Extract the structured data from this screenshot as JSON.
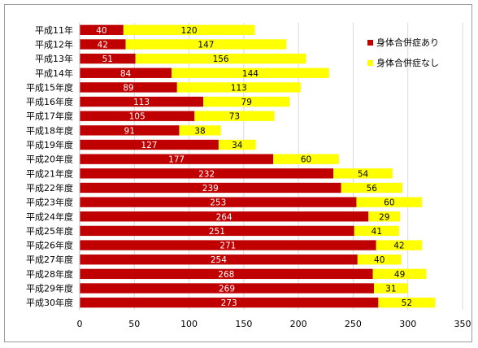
{
  "chart_data": {
    "type": "bar",
    "orientation": "horizontal",
    "stacked": true,
    "title": "",
    "xlabel": "",
    "ylabel": "",
    "xlim": [
      0,
      350
    ],
    "xticks": [
      0,
      50,
      100,
      150,
      200,
      250,
      300,
      350
    ],
    "grid": true,
    "legend_position": "right",
    "categories": [
      "平成11年",
      "平成12年",
      "平成13年",
      "平成14年",
      "平成15年度",
      "平成16年度",
      "平成17年度",
      "平成18年度",
      "平成19年度",
      "平成20年度",
      "平成21年度",
      "平成22年度",
      "平成23年度",
      "平成24年度",
      "平成25年度",
      "平成26年度",
      "平成27年度",
      "平成28年度",
      "平成29年度",
      "平成30年度"
    ],
    "series": [
      {
        "name": "身体合併症あり",
        "color": "#c00000",
        "label_color": "#ffffff",
        "values": [
          40,
          42,
          51,
          84,
          89,
          113,
          105,
          91,
          127,
          177,
          232,
          239,
          253,
          264,
          251,
          271,
          254,
          268,
          269,
          273
        ]
      },
      {
        "name": "身体合併症なし",
        "color": "#ffff00",
        "label_color": "#000000",
        "values": [
          120,
          147,
          156,
          144,
          113,
          79,
          73,
          38,
          34,
          60,
          54,
          56,
          60,
          29,
          41,
          42,
          40,
          49,
          31,
          52
        ]
      }
    ]
  }
}
